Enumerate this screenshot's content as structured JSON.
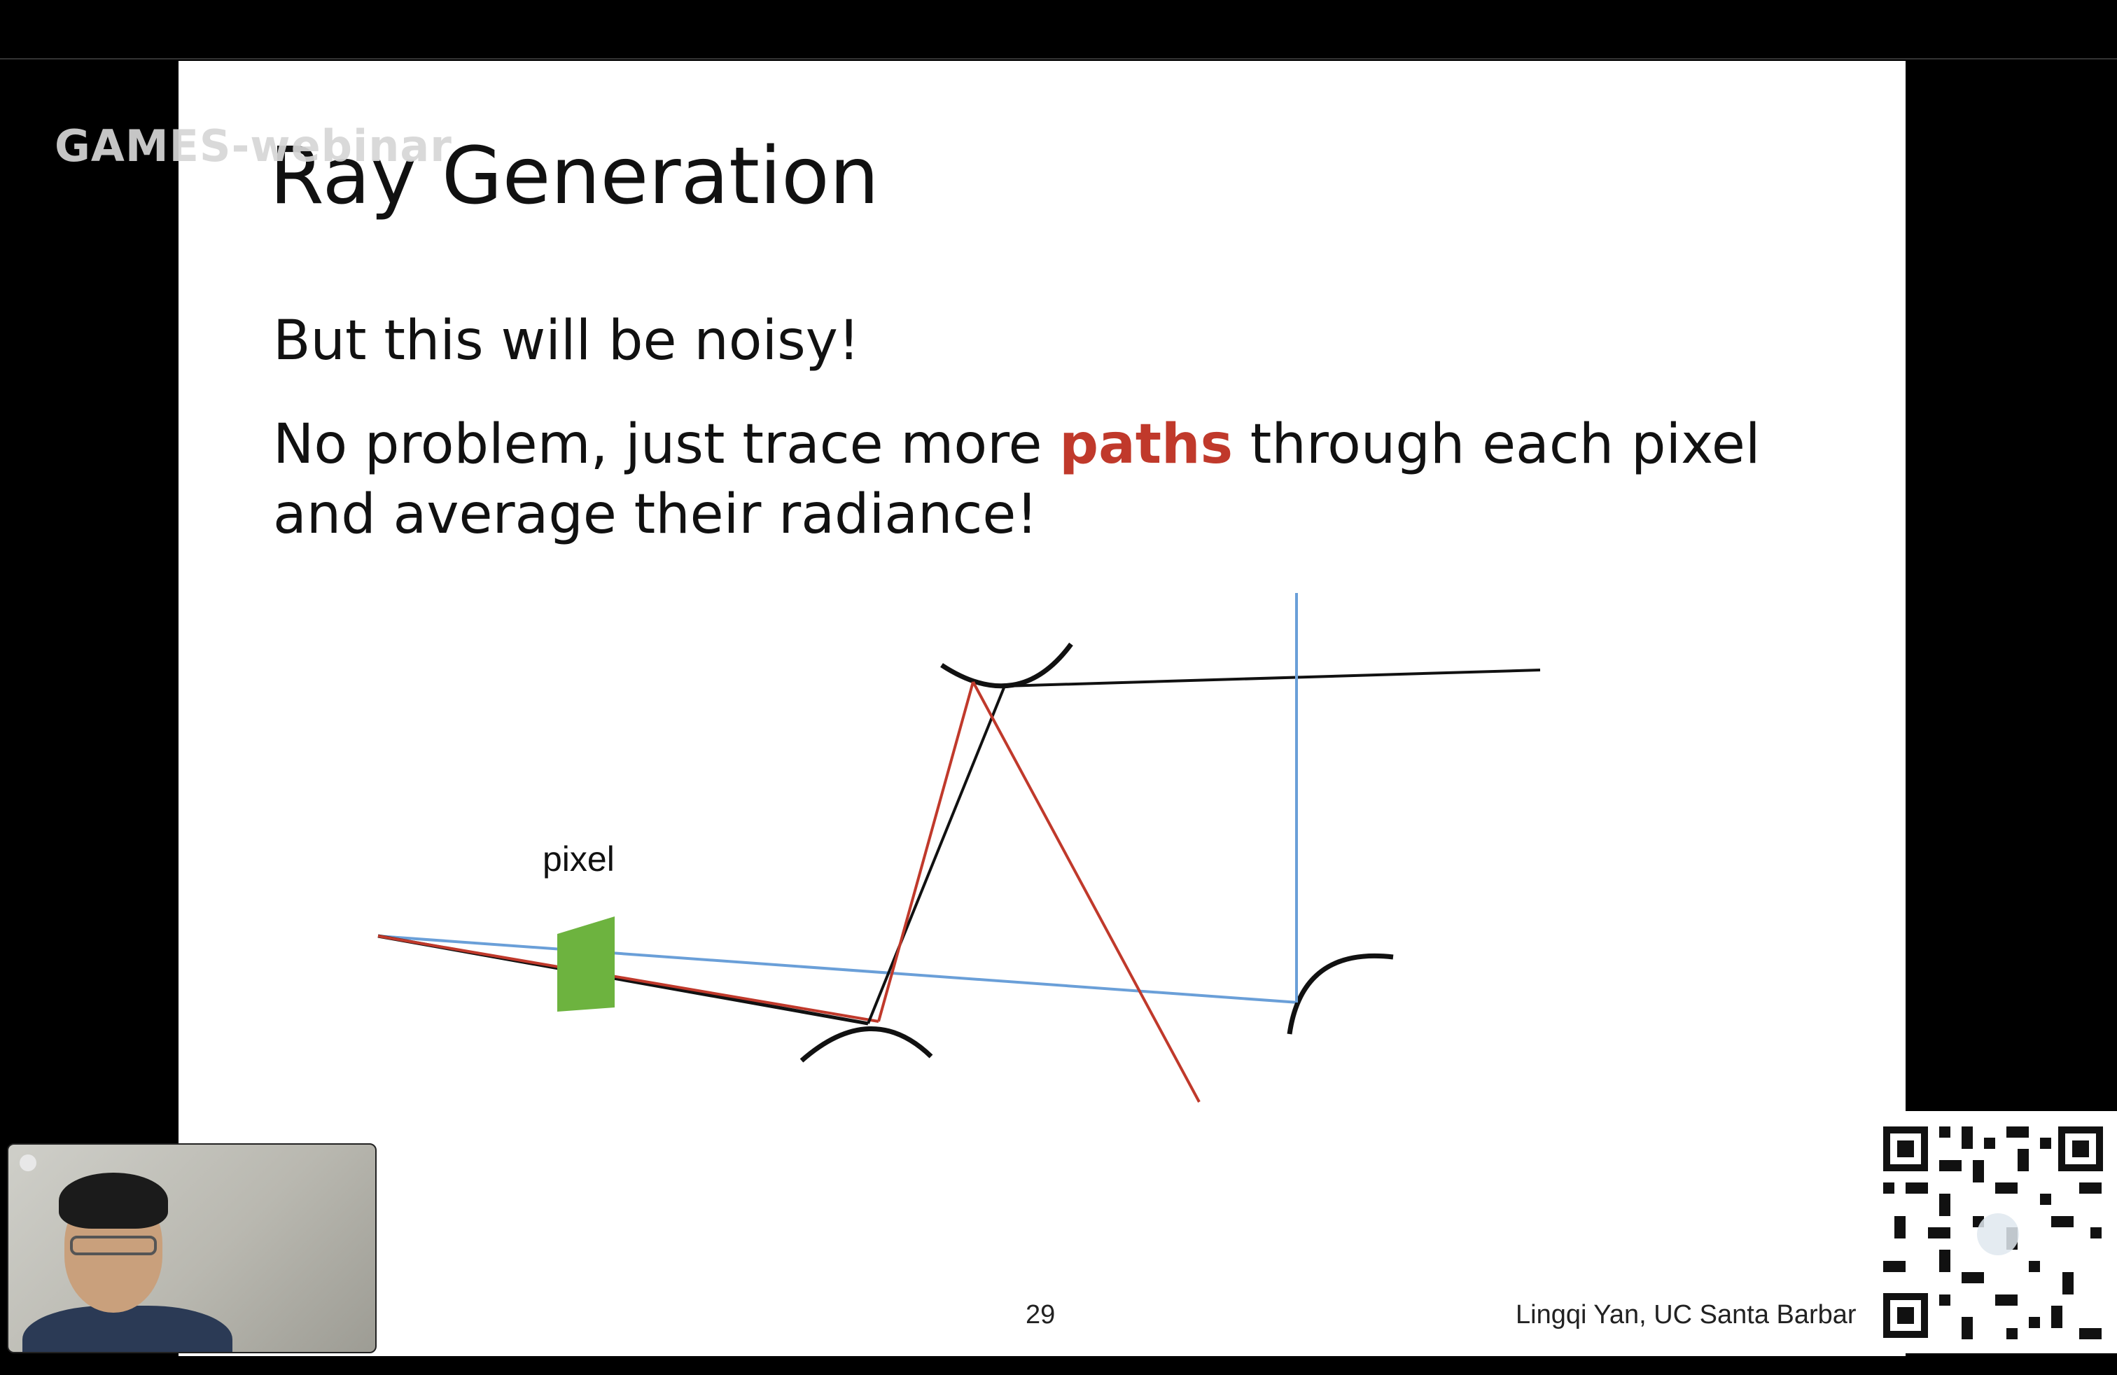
{
  "overlay": {
    "watermark": "GAMES-webinar"
  },
  "slide": {
    "title": "Ray Generation",
    "line1": "But this will be noisy!",
    "line2_before": "No problem, just trace more ",
    "line2_highlight": "paths",
    "line2_after": " through each pixel and average their radiance!",
    "pixel_label": "pixel",
    "page_number": "29",
    "credit": "Lingqi Yan, UC Santa Barbar"
  },
  "colors": {
    "highlight": "#c0392b",
    "pixel_fill": "#6db33f",
    "ray_red": "#c0392b",
    "ray_blue": "#6a9fd8",
    "ray_black": "#111111"
  }
}
